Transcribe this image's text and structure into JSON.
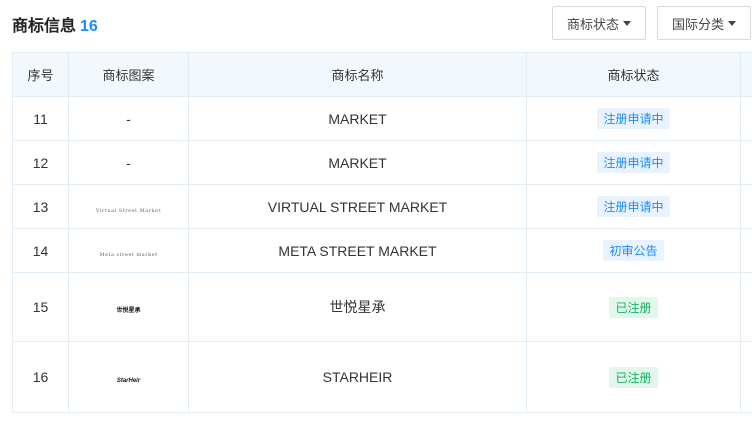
{
  "header": {
    "title": "商标信息",
    "count": "16"
  },
  "filters": [
    {
      "label": "商标状态"
    },
    {
      "label": "国际分类"
    }
  ],
  "columns": [
    "序号",
    "商标图案",
    "商标名称",
    "商标状态",
    ""
  ],
  "status_colors": {
    "blue_bg": "#e8f3ff",
    "blue_text": "#1a8cff",
    "green_bg": "#e3f6ec",
    "green_text": "#10b060"
  },
  "rows": [
    {
      "no": "11",
      "logo": "-",
      "logo_style": "dash",
      "name": "MARKET",
      "status": "注册申请中",
      "tone": "blue"
    },
    {
      "no": "12",
      "logo": "-",
      "logo_style": "dash",
      "name": "MARKET",
      "status": "注册申请中",
      "tone": "blue"
    },
    {
      "no": "13",
      "logo": "Virtual Street Market",
      "logo_style": "text",
      "name": "VIRTUAL STREET MARKET",
      "status": "注册申请中",
      "tone": "blue"
    },
    {
      "no": "14",
      "logo": "Meta street market",
      "logo_style": "text",
      "name": "META STREET MARKET",
      "status": "初审公告",
      "tone": "blue"
    },
    {
      "no": "15",
      "logo": "世悦星承",
      "logo_style": "bold",
      "name": "世悦星承",
      "status": "已注册",
      "tone": "green"
    },
    {
      "no": "16",
      "logo": "StarHeir",
      "logo_style": "italic",
      "name": "STARHEIR",
      "status": "已注册",
      "tone": "green"
    }
  ]
}
